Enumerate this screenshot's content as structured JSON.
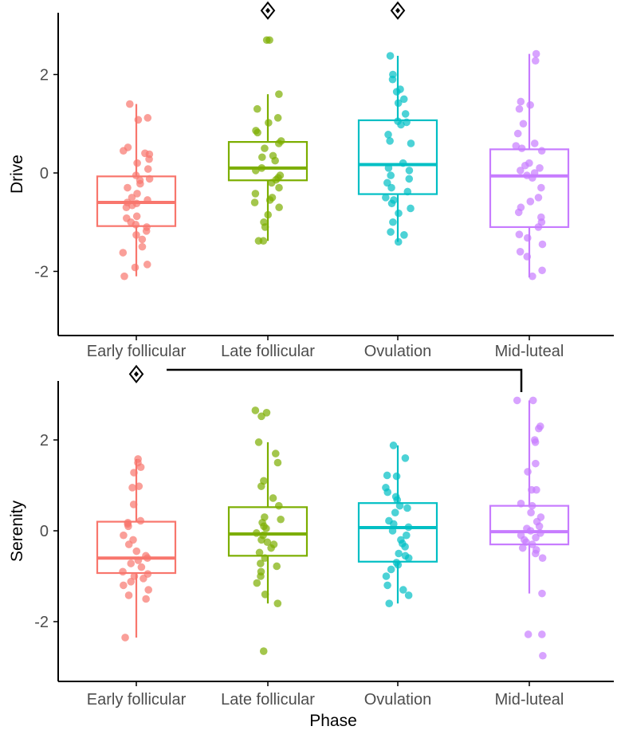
{
  "colors": {
    "Early follicular": "#F8766D",
    "Late follicular": "#7CAE00",
    "Ovulation": "#00BFC4",
    "Mid-luteal": "#C77CFF",
    "axis": "#000000",
    "tick_text": "#4d4d4d"
  },
  "chart_data": [
    {
      "type": "box",
      "id": "drive",
      "ylabel": "Drive",
      "xlabel": "",
      "ylim": [
        -3.2,
        3.35
      ],
      "yticks": [
        -2,
        0,
        2
      ],
      "ytick_labels": [
        "-2",
        "0",
        "2"
      ],
      "categories": [
        "Early follicular",
        "Late follicular",
        "Ovulation",
        "Mid-luteal"
      ],
      "boxes": [
        {
          "min": -2.1,
          "q1": -1.08,
          "median": -0.6,
          "q3": -0.07,
          "max": 1.4
        },
        {
          "min": -1.38,
          "q1": -0.15,
          "median": 0.1,
          "q3": 0.63,
          "max": 1.6
        },
        {
          "min": -1.4,
          "q1": -0.43,
          "median": 0.17,
          "q3": 1.07,
          "max": 2.38
        },
        {
          "min": -2.12,
          "q1": -1.1,
          "median": -0.06,
          "q3": 0.48,
          "max": 2.42
        }
      ],
      "points": [
        [
          1.4,
          1.12,
          1.08,
          0.52,
          0.45,
          0.4,
          0.38,
          0.28,
          0.2,
          0.08,
          -0.05,
          -0.12,
          -0.15,
          -0.22,
          -0.3,
          -0.42,
          -0.5,
          -0.55,
          -0.6,
          -0.62,
          -0.66,
          -0.7,
          -0.88,
          -0.92,
          -1.0,
          -1.05,
          -1.1,
          -1.18,
          -1.26,
          -1.35,
          -1.5,
          -1.62,
          -1.86,
          -1.92,
          -2.1
        ],
        [
          2.7,
          2.7,
          1.6,
          1.3,
          1.12,
          1.02,
          0.86,
          0.82,
          0.65,
          0.6,
          0.5,
          0.35,
          0.32,
          0.25,
          0.1,
          0.05,
          -0.05,
          -0.1,
          -0.14,
          -0.2,
          -0.3,
          -0.42,
          -0.5,
          -0.55,
          -0.6,
          -0.7,
          -0.85,
          -1.0,
          -1.1,
          -1.38,
          -1.38
        ],
        [
          2.38,
          2.0,
          1.9,
          1.7,
          1.65,
          1.5,
          1.42,
          1.2,
          1.05,
          1.03,
          0.98,
          0.78,
          0.65,
          0.6,
          0.2,
          0.1,
          0.05,
          -0.05,
          -0.12,
          -0.2,
          -0.3,
          -0.38,
          -0.5,
          -0.55,
          -0.62,
          -0.72,
          -0.82,
          -1.0,
          -1.2,
          -1.26,
          -1.4
        ],
        [
          2.42,
          2.28,
          1.45,
          1.38,
          1.3,
          1.0,
          0.8,
          0.6,
          0.55,
          0.5,
          0.45,
          0.2,
          0.15,
          0.1,
          0.05,
          0.0,
          -0.05,
          -0.1,
          -0.3,
          -0.5,
          -0.58,
          -0.7,
          -0.8,
          -0.9,
          -1.0,
          -1.1,
          -1.25,
          -1.32,
          -1.45,
          -1.6,
          -1.7,
          -1.98,
          -2.1
        ]
      ],
      "annotations": [
        {
          "symbol": "diamond",
          "category": "Late follicular",
          "y": 3.3
        },
        {
          "symbol": "diamond",
          "category": "Ovulation",
          "y": 3.3
        }
      ]
    },
    {
      "type": "box",
      "id": "serenity",
      "ylabel": "Serenity",
      "xlabel": "Phase",
      "ylim": [
        -3.3,
        3.3
      ],
      "yticks": [
        -2,
        0,
        2
      ],
      "ytick_labels": [
        "-2",
        "0",
        "2"
      ],
      "categories": [
        "Early follicular",
        "Late follicular",
        "Ovulation",
        "Mid-luteal"
      ],
      "boxes": [
        {
          "min": -2.35,
          "q1": -0.93,
          "median": -0.6,
          "q3": 0.2,
          "max": 1.58
        },
        {
          "min": -1.6,
          "q1": -0.55,
          "median": -0.07,
          "q3": 0.52,
          "max": 1.95
        },
        {
          "min": -1.6,
          "q1": -0.68,
          "median": 0.07,
          "q3": 0.61,
          "max": 1.88
        },
        {
          "min": -1.38,
          "q1": -0.3,
          "median": -0.02,
          "q3": 0.55,
          "max": 2.87
        }
      ],
      "points": [
        [
          1.58,
          1.5,
          1.4,
          1.28,
          0.98,
          0.95,
          0.58,
          0.22,
          0.18,
          0.15,
          0.1,
          -0.1,
          -0.2,
          -0.3,
          -0.45,
          -0.55,
          -0.6,
          -0.65,
          -0.72,
          -0.8,
          -0.9,
          -0.95,
          -1.0,
          -1.05,
          -1.12,
          -1.2,
          -1.3,
          -1.42,
          -1.5,
          -2.35
        ],
        [
          2.65,
          2.6,
          2.52,
          1.95,
          1.7,
          1.5,
          1.1,
          0.98,
          0.72,
          0.55,
          0.3,
          0.25,
          0.18,
          0.1,
          0.05,
          -0.05,
          -0.1,
          -0.2,
          -0.25,
          -0.3,
          -0.38,
          -0.48,
          -0.6,
          -0.72,
          -0.78,
          -0.9,
          -1.0,
          -1.15,
          -1.4,
          -1.6,
          -2.65
        ],
        [
          1.88,
          1.6,
          1.22,
          1.2,
          0.95,
          0.85,
          0.75,
          0.68,
          0.55,
          0.5,
          0.4,
          0.22,
          0.15,
          0.08,
          0.0,
          -0.1,
          -0.2,
          -0.28,
          -0.35,
          -0.5,
          -0.55,
          -0.6,
          -0.7,
          -0.75,
          -0.85,
          -1.0,
          -1.2,
          -1.3,
          -1.42,
          -1.6
        ],
        [
          2.87,
          2.87,
          2.3,
          2.25,
          2.0,
          1.95,
          1.48,
          1.3,
          0.9,
          0.9,
          0.6,
          0.55,
          0.4,
          0.3,
          0.2,
          0.1,
          0.05,
          0.0,
          -0.05,
          -0.1,
          -0.15,
          -0.2,
          -0.25,
          -0.3,
          -0.38,
          -0.42,
          -0.5,
          -0.6,
          -1.38,
          -2.28,
          -2.28,
          -2.75
        ]
      ],
      "annotations": [
        {
          "symbol": "diamond",
          "category": "Early follicular",
          "y": 3.45
        }
      ],
      "bracket": {
        "from": "Early follicular",
        "to": "Mid-luteal"
      }
    }
  ]
}
